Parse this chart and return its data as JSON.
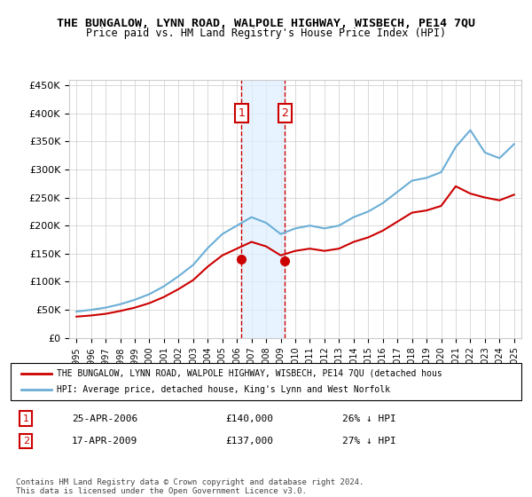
{
  "title": "THE BUNGALOW, LYNN ROAD, WALPOLE HIGHWAY, WISBECH, PE14 7QU",
  "subtitle": "Price paid vs. HM Land Registry's House Price Index (HPI)",
  "legend_line1": "THE BUNGALOW, LYNN ROAD, WALPOLE HIGHWAY, WISBECH, PE14 7QU (detached hous",
  "legend_line2": "HPI: Average price, detached house, King's Lynn and West Norfolk",
  "annotation1_label": "1",
  "annotation1_date": "25-APR-2006",
  "annotation1_price": "£140,000",
  "annotation1_hpi": "26% ↓ HPI",
  "annotation2_label": "2",
  "annotation2_date": "17-APR-2009",
  "annotation2_price": "£137,000",
  "annotation2_hpi": "27% ↓ HPI",
  "footnote": "Contains HM Land Registry data © Crown copyright and database right 2024.\nThis data is licensed under the Open Government Licence v3.0.",
  "sale1_year": 2006.32,
  "sale2_year": 2009.29,
  "sale1_value": 140000,
  "sale2_value": 137000,
  "hpi_color": "#6baed6",
  "price_color": "#cc0000",
  "shade_color": "#ddeeff",
  "sale_dot_color": "#cc0000",
  "annotation_box_color": "#cc0000",
  "ylim_min": 0,
  "ylim_max": 460000,
  "hpi_years": [
    1995,
    1996,
    1997,
    1998,
    1999,
    2000,
    2001,
    2002,
    2003,
    2004,
    2005,
    2006,
    2007,
    2008,
    2009,
    2010,
    2011,
    2012,
    2013,
    2014,
    2015,
    2016,
    2017,
    2018,
    2019,
    2020,
    2021,
    2022,
    2023,
    2024,
    2025
  ],
  "hpi_values": [
    47000,
    50000,
    54000,
    60000,
    68000,
    78000,
    92000,
    110000,
    130000,
    160000,
    185000,
    200000,
    215000,
    205000,
    185000,
    195000,
    200000,
    195000,
    200000,
    215000,
    225000,
    240000,
    260000,
    280000,
    285000,
    295000,
    340000,
    370000,
    330000,
    320000,
    345000
  ],
  "price_years": [
    1995,
    1996,
    1997,
    1998,
    1999,
    2000,
    2001,
    2002,
    2003,
    2004,
    2005,
    2006,
    2007,
    2008,
    2009,
    2010,
    2011,
    2012,
    2013,
    2014,
    2015,
    2016,
    2017,
    2018,
    2019,
    2020,
    2021,
    2022,
    2023,
    2024,
    2025
  ],
  "price_values": [
    38000,
    40000,
    43000,
    48000,
    54000,
    62000,
    73000,
    87000,
    103000,
    127000,
    147000,
    159000,
    171000,
    163000,
    147000,
    155000,
    159000,
    155000,
    159000,
    171000,
    179000,
    191000,
    207000,
    223000,
    227000,
    235000,
    270000,
    257000,
    250000,
    245000,
    255000
  ]
}
